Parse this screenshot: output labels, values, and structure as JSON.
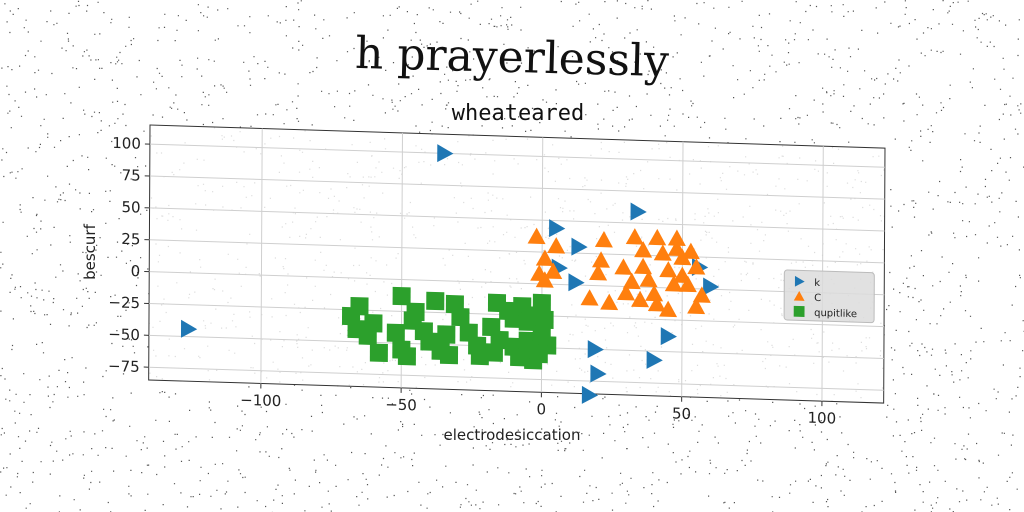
{
  "suptitle": "h prayerlessly",
  "chart_data": {
    "type": "scatter",
    "title": "wheateared",
    "xlabel": "electrodesiccation",
    "ylabel": "bescurf",
    "xlim": [
      -140,
      122
    ],
    "ylim": [
      -85,
      115
    ],
    "xticks": [
      -100,
      -50,
      0,
      50,
      100
    ],
    "yticks": [
      -75,
      -50,
      -25,
      0,
      25,
      50,
      75,
      100
    ],
    "grid": true,
    "legend_position": "right",
    "series": [
      {
        "name": "k",
        "marker": "triangle-right",
        "color": "#1f77b4",
        "points": [
          [
            -35,
            100
          ],
          [
            -126,
            -44
          ],
          [
            34,
            59
          ],
          [
            5,
            44
          ],
          [
            13,
            30
          ],
          [
            12,
            2
          ],
          [
            6,
            13
          ],
          [
            56,
            17
          ],
          [
            60,
            2
          ],
          [
            45,
            -38
          ],
          [
            19,
            -50
          ],
          [
            40,
            -57
          ],
          [
            20,
            -69
          ],
          [
            17,
            -86
          ]
        ]
      },
      {
        "name": "C",
        "marker": "triangle-up",
        "color": "#ff7f0e",
        "points": [
          [
            -2,
            37
          ],
          [
            5,
            30
          ],
          [
            1,
            20
          ],
          [
            4,
            10
          ],
          [
            1,
            3
          ],
          [
            -1,
            8
          ],
          [
            22,
            36
          ],
          [
            21,
            20
          ],
          [
            20,
            10
          ],
          [
            17,
            -10
          ],
          [
            24,
            -13
          ],
          [
            33,
            39
          ],
          [
            36,
            29
          ],
          [
            41,
            39
          ],
          [
            43,
            27
          ],
          [
            48,
            39
          ],
          [
            48,
            31
          ],
          [
            50,
            24
          ],
          [
            53,
            29
          ],
          [
            36,
            16
          ],
          [
            38,
            6
          ],
          [
            32,
            4
          ],
          [
            30,
            -5
          ],
          [
            35,
            -10
          ],
          [
            41,
            -13
          ],
          [
            45,
            14
          ],
          [
            47,
            3
          ],
          [
            50,
            10
          ],
          [
            52,
            3
          ],
          [
            55,
            17
          ],
          [
            57,
            -5
          ],
          [
            45,
            -17
          ],
          [
            55,
            -14
          ],
          [
            40,
            -5
          ],
          [
            29,
            15
          ]
        ]
      },
      {
        "name": "qupitlike",
        "marker": "square",
        "color": "#2ca02c",
        "points": [
          [
            -65,
            -22
          ],
          [
            -68,
            -30
          ],
          [
            -66,
            -40
          ],
          [
            -60,
            -35
          ],
          [
            -62,
            -45
          ],
          [
            -58,
            -58
          ],
          [
            -48,
            -60
          ],
          [
            -52,
            -42
          ],
          [
            -50,
            -13
          ],
          [
            -45,
            -25
          ],
          [
            -46,
            -32
          ],
          [
            -42,
            -40
          ],
          [
            -40,
            -48
          ],
          [
            -36,
            -55
          ],
          [
            -34,
            -42
          ],
          [
            -38,
            -16
          ],
          [
            -31,
            -18
          ],
          [
            -29,
            -28
          ],
          [
            -26,
            -40
          ],
          [
            -23,
            -50
          ],
          [
            -22,
            -58
          ],
          [
            -17,
            -55
          ],
          [
            -18,
            -35
          ],
          [
            -15,
            -45
          ],
          [
            -10,
            -50
          ],
          [
            -8,
            -58
          ],
          [
            -5,
            -45
          ],
          [
            -3,
            -60
          ],
          [
            -2,
            -52
          ],
          [
            -16,
            -16
          ],
          [
            -12,
            -22
          ],
          [
            -10,
            -28
          ],
          [
            -7,
            -18
          ],
          [
            -4,
            -25
          ],
          [
            -5,
            -30
          ],
          [
            0,
            -15
          ],
          [
            1,
            -28
          ],
          [
            0,
            -40
          ],
          [
            2,
            -48
          ],
          [
            -1,
            -55
          ],
          [
            -33,
            -58
          ],
          [
            -50,
            -55
          ]
        ]
      }
    ]
  }
}
